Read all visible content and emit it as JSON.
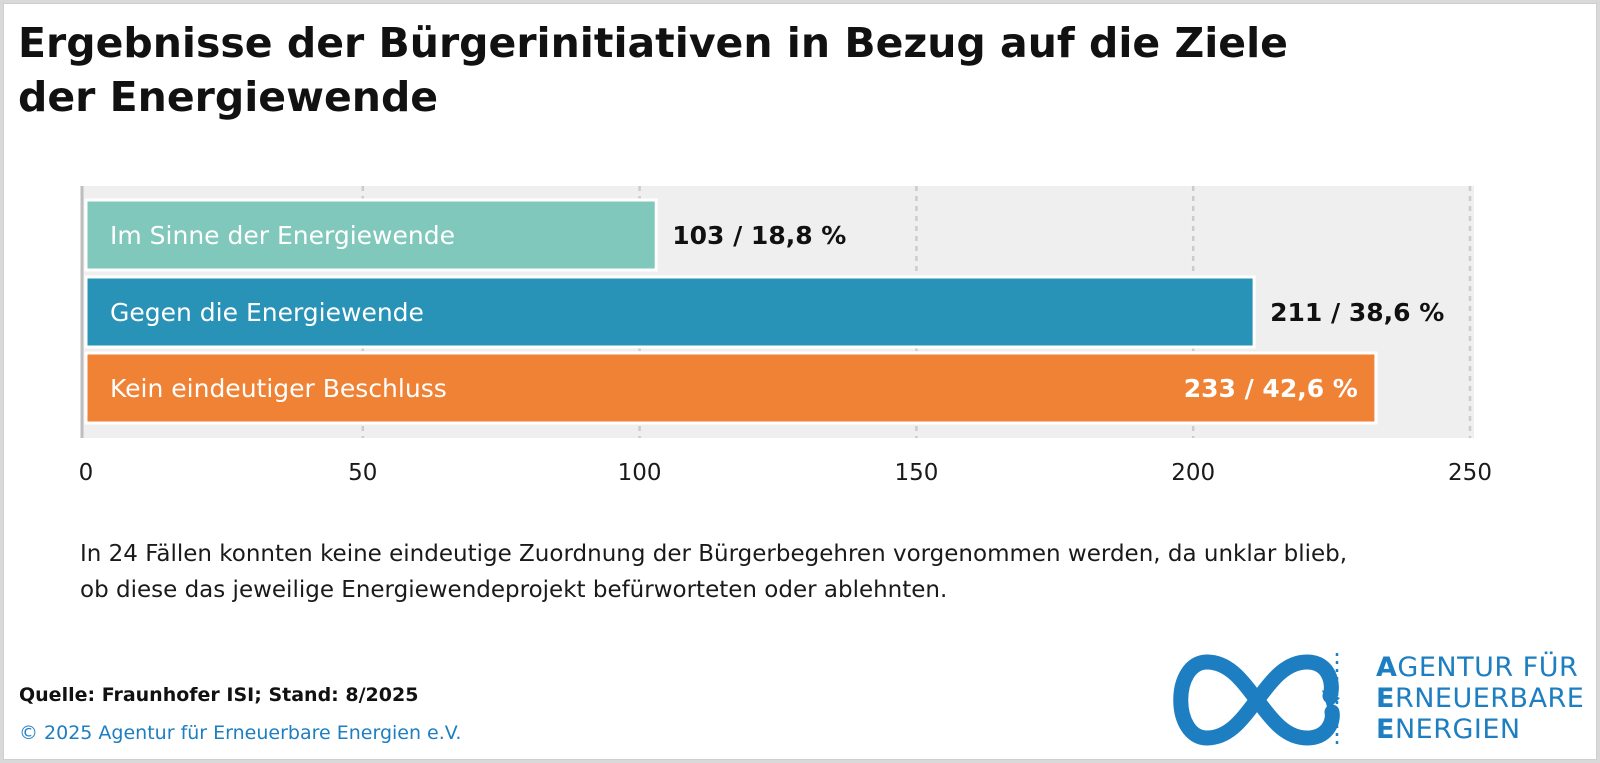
{
  "title": {
    "line1": "Ergebnisse der Bürgerinitiativen in Bezug auf die Ziele",
    "line2": "der Energiewende"
  },
  "chart_data": {
    "type": "bar",
    "orientation": "horizontal",
    "categories": [
      "Im Sinne der Energiewende",
      "Gegen die Energiewende",
      "Kein eindeutiger Beschluss"
    ],
    "values": [
      103,
      211,
      233
    ],
    "data_labels": [
      "103 / 18,8 %",
      "211 / 38,6 %",
      "233 / 42,6 %"
    ],
    "colors": [
      "#7fc8bb",
      "#2892b7",
      "#f08236"
    ],
    "xlim": [
      0,
      250
    ],
    "xticks": [
      0,
      50,
      100,
      150,
      200,
      250
    ],
    "tick_labels": [
      "0",
      "50",
      "100",
      "150",
      "200",
      "250"
    ],
    "grid": true,
    "background": "#efefef"
  },
  "note": {
    "line1": "In 24 Fällen konnten keine eindeutige Zuordnung der Bürgerbegehren vorgenommen werden, da unklar blieb,",
    "line2": "ob diese das jeweilige Energiewendeprojekt befürworteten oder ablehnten."
  },
  "source": "Quelle: Fraunhofer ISI; Stand: 8/2025",
  "copyright": "© 2025 Agentur für Erneuerbare Energien e.V.",
  "logo": {
    "line1_initial": "A",
    "line1_rest": "GENTUR FÜR",
    "line2_initial": "E",
    "line2_rest": "RNEUERBARE",
    "line3_initial": "E",
    "line3_rest": "NERGIEN",
    "color": "#1d7ec2"
  }
}
